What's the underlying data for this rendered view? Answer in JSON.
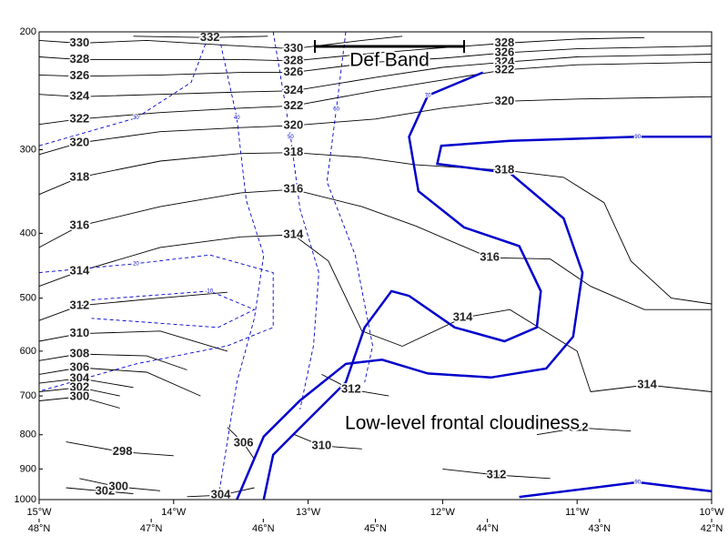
{
  "chart_data": {
    "type": "contour",
    "annotations": [
      "Def Band",
      "Low-level frontal cloudiness"
    ],
    "xlim": [
      -15,
      -10
    ],
    "xticks": [
      {
        "value": -15,
        "label": "15°W"
      },
      {
        "value": -14,
        "label": "14°W"
      },
      {
        "value": -13,
        "label": "13°W"
      },
      {
        "value": -12,
        "label": "12°W"
      },
      {
        "value": -11,
        "label": "11°W"
      },
      {
        "value": -10,
        "label": "10°W"
      }
    ],
    "x2lim": [
      48,
      42
    ],
    "x2ticks": [
      {
        "value": 48,
        "label": "48°N"
      },
      {
        "value": 47,
        "label": "47°N"
      },
      {
        "value": 46,
        "label": "46°N"
      },
      {
        "value": 45,
        "label": "45°N"
      },
      {
        "value": 44,
        "label": "44°N"
      },
      {
        "value": 43,
        "label": "43°N"
      },
      {
        "value": 42,
        "label": "42°N"
      }
    ],
    "ylim": [
      1000,
      200
    ],
    "ylog": true,
    "yticks": [
      200,
      300,
      400,
      500,
      600,
      700,
      800,
      900,
      1000
    ],
    "theta_color": "#000000",
    "rh_color": "#0000cc",
    "rh_solid_min": 70,
    "theta_contours": [
      {
        "level": 330,
        "lon": [
          -15,
          -14.7,
          -14.2,
          -13.5
        ],
        "p": [
          206,
          208,
          206,
          210
        ]
      },
      {
        "level": 330,
        "lon": [
          -13.5,
          -13.11,
          -12.6,
          -12.3
        ],
        "p": [
          210,
          212,
          206,
          203
        ]
      },
      {
        "level": 332,
        "lon": [
          -14.3,
          -13.73,
          -13.3
        ],
        "p": [
          203,
          204,
          203
        ]
      },
      {
        "level": 328,
        "lon": [
          -15,
          -14.7,
          -14.1,
          -13.5
        ],
        "p": [
          218,
          220,
          220,
          220
        ]
      },
      {
        "level": 328,
        "lon": [
          -13.5,
          -13.11,
          -12.6,
          -12.1
        ],
        "p": [
          220,
          221,
          216,
          212
        ]
      },
      {
        "level": 328,
        "lon": [
          -12.1,
          -11.54,
          -11,
          -10.5
        ],
        "p": [
          212,
          208,
          205,
          204
        ]
      },
      {
        "level": 326,
        "lon": [
          -15,
          -14.7,
          -14.1,
          -13.5
        ],
        "p": [
          232,
          233,
          232,
          230
        ]
      },
      {
        "level": 326,
        "lon": [
          -13.5,
          -13.11,
          -12.5,
          -12
        ],
        "p": [
          230,
          230,
          222,
          219
        ]
      },
      {
        "level": 326,
        "lon": [
          -12,
          -11.54,
          -11,
          -10
        ],
        "p": [
          219,
          215,
          212,
          210
        ]
      },
      {
        "level": 324,
        "lon": [
          -15,
          -14.7,
          -14.1,
          -13.5
        ],
        "p": [
          248,
          250,
          248,
          246
        ]
      },
      {
        "level": 324,
        "lon": [
          -13.5,
          -13.11,
          -12.5,
          -12
        ],
        "p": [
          246,
          245,
          234,
          226
        ]
      },
      {
        "level": 324,
        "lon": [
          -12,
          -11.54,
          -11,
          -10
        ],
        "p": [
          226,
          222,
          218,
          216
        ]
      },
      {
        "level": 322,
        "lon": [
          -15,
          -14.7,
          -14.1,
          -13.5
        ],
        "p": [
          275,
          270,
          264,
          260
        ]
      },
      {
        "level": 322,
        "lon": [
          -13.5,
          -13.11,
          -12.5,
          -12
        ],
        "p": [
          260,
          258,
          245,
          236
        ]
      },
      {
        "level": 322,
        "lon": [
          -12,
          -11.54,
          -11,
          -10
        ],
        "p": [
          236,
          228,
          224,
          222
        ]
      },
      {
        "level": 320,
        "lon": [
          -15,
          -14.7,
          -14.1,
          -13.5
        ],
        "p": [
          305,
          293,
          282,
          278
        ]
      },
      {
        "level": 320,
        "lon": [
          -13.5,
          -13.11,
          -12.5,
          -12
        ],
        "p": [
          278,
          276,
          270,
          260
        ]
      },
      {
        "level": 320,
        "lon": [
          -12,
          -11.54,
          -11,
          -10
        ],
        "p": [
          260,
          254,
          252,
          250
        ]
      },
      {
        "level": 318,
        "lon": [
          -15,
          -14.7,
          -14.1,
          -13.5
        ],
        "p": [
          350,
          330,
          312,
          304
        ]
      },
      {
        "level": 318,
        "lon": [
          -13.5,
          -13.11,
          -12.6,
          -12.2
        ],
        "p": [
          304,
          303,
          308,
          316
        ]
      },
      {
        "level": 318,
        "lon": [
          -12.2,
          -11.54,
          -11.1,
          -10.8,
          -10.6,
          -10.3,
          -10
        ],
        "p": [
          316,
          322,
          330,
          360,
          440,
          500,
          510
        ]
      },
      {
        "level": 316,
        "lon": [
          -15,
          -14.7,
          -14.1,
          -13.5
        ],
        "p": [
          420,
          390,
          365,
          348
        ]
      },
      {
        "level": 316,
        "lon": [
          -13.5,
          -13.11,
          -12.6,
          -12.2
        ],
        "p": [
          348,
          344,
          365,
          390
        ]
      },
      {
        "level": 316,
        "lon": [
          -12.2,
          -11.65,
          -11.2,
          -10.9,
          -10.5,
          -10
        ],
        "p": [
          390,
          435,
          437,
          480,
          520,
          520
        ]
      },
      {
        "level": 314,
        "lon": [
          -15,
          -14.7,
          -14.1,
          -13.5
        ],
        "p": [
          480,
          456,
          420,
          405
        ]
      },
      {
        "level": 314,
        "lon": [
          -13.5,
          -13.11,
          -12.85,
          -12.6,
          -12.3
        ],
        "p": [
          405,
          402,
          440,
          560,
          590
        ]
      },
      {
        "level": 314,
        "lon": [
          -12.3,
          -11.85,
          -11.5,
          -11,
          -10.9
        ],
        "p": [
          590,
          535,
          520,
          600,
          690
        ]
      },
      {
        "level": 314,
        "lon": [
          -10.9,
          -10.48,
          -10
        ],
        "p": [
          690,
          674,
          690
        ]
      },
      {
        "level": 312,
        "lon": [
          -15,
          -14.7,
          -14.1,
          -13.6
        ],
        "p": [
          540,
          513,
          500,
          490
        ]
      },
      {
        "level": 312,
        "lon": [
          -12.9,
          -12.68,
          -12.4
        ],
        "p": [
          650,
          685,
          700
        ]
      },
      {
        "level": 312,
        "lon": [
          -12,
          -11.6,
          -11.2
        ],
        "p": [
          900,
          919,
          930
        ]
      },
      {
        "level": 312,
        "lon": [
          -11.3,
          -10.99,
          -10.6
        ],
        "p": [
          800,
          781,
          790
        ]
      },
      {
        "level": 310,
        "lon": [
          -15,
          -14.7,
          -14.1,
          -13.6
        ],
        "p": [
          580,
          565,
          560,
          600
        ]
      },
      {
        "level": 310,
        "lon": [
          -13.1,
          -12.9,
          -12.6
        ],
        "p": [
          800,
          831,
          840
        ]
      },
      {
        "level": 308,
        "lon": [
          -15,
          -14.7,
          -14.2,
          -13.9
        ],
        "p": [
          620,
          606,
          610,
          640
        ]
      },
      {
        "level": 306,
        "lon": [
          -15,
          -14.7,
          -14.2,
          -13.8
        ],
        "p": [
          650,
          635,
          645,
          700
        ]
      },
      {
        "level": 306,
        "lon": [
          -13.6,
          -13.48,
          -13.4
        ],
        "p": [
          780,
          824,
          870
        ]
      },
      {
        "level": 304,
        "lon": [
          -15,
          -14.7,
          -14.3
        ],
        "p": [
          670,
          659,
          680
        ]
      },
      {
        "level": 304,
        "lon": [
          -13.9,
          -13.65,
          -13.4
        ],
        "p": [
          990,
          985,
          960
        ]
      },
      {
        "level": 302,
        "lon": [
          -15,
          -14.7,
          -14.4
        ],
        "p": [
          690,
          680,
          700
        ]
      },
      {
        "level": 302,
        "lon": [
          -14.8,
          -14.51,
          -14.3
        ],
        "p": [
          960,
          972,
          980
        ]
      },
      {
        "level": 300,
        "lon": [
          -15,
          -14.7,
          -14.4
        ],
        "p": [
          712,
          702,
          730
        ]
      },
      {
        "level": 300,
        "lon": [
          -14.7,
          -14.41,
          -14.1
        ],
        "p": [
          930,
          957,
          970
        ]
      },
      {
        "level": 298,
        "lon": [
          -14.8,
          -14.38,
          -14
        ],
        "p": [
          820,
          849,
          860
        ]
      }
    ],
    "rh_contours": [
      {
        "level": 70,
        "lon": [
          -11.7,
          -12.11,
          -12.25,
          -12.18,
          -11.84,
          -11.43,
          -11.27,
          -11.3,
          -11.54,
          -11.91,
          -12.25,
          -12.38,
          -12.58,
          -12.72,
          -13.06,
          -13.26,
          -13.33
        ],
        "p": [
          230,
          249,
          287,
          346,
          392,
          418,
          488,
          553,
          580,
          553,
          496,
          488,
          553,
          668,
          781,
          857,
          1000
        ]
      },
      {
        "level": 90,
        "lon": [
          -10,
          -10.55,
          -11.5,
          -12.01,
          -12.04,
          -11.5,
          -11.1,
          -10.96,
          -11.03,
          -11.23,
          -11.64,
          -12.11,
          -12.45,
          -12.72,
          -13.06,
          -13.33,
          -13.53
        ],
        "p": [
          287,
          287,
          291,
          296,
          315,
          325,
          380,
          458,
          571,
          637,
          657,
          648,
          618,
          627,
          711,
          805,
          1000
        ]
      },
      {
        "level": 90,
        "lon": [
          -11.43,
          -10.55,
          -10
        ],
        "p": [
          991,
          942,
          972
        ]
      },
      {
        "level": 60,
        "lon": [
          -12.72,
          -12.79,
          -12.86,
          -12.65,
          -12.52,
          -12.58
        ],
        "p": [
          200,
          261,
          335,
          431,
          589,
          668
        ]
      },
      {
        "level": 50,
        "lon": [
          -13.26,
          -13.13,
          -13.06,
          -12.92,
          -12.96,
          -13.06
        ],
        "p": [
          200,
          287,
          368,
          458,
          589,
          733
        ]
      },
      {
        "level": 40,
        "lon": [
          -13.67,
          -13.53,
          -13.46,
          -13.33,
          -13.4,
          -13.53,
          -13.67
        ],
        "p": [
          200,
          269,
          357,
          431,
          536,
          668,
          1000
        ]
      },
      {
        "level": 30,
        "lon": [
          -15,
          -14.28,
          -13.87,
          -13.73
        ],
        "p": [
          296,
          269,
          238,
          200
        ]
      },
      {
        "level": 20,
        "lon": [
          -15,
          -14.28,
          -13.73,
          -13.26,
          -13.26,
          -13.6,
          -14.28,
          -15
        ],
        "p": [
          458,
          444,
          431,
          458,
          553,
          589,
          627,
          689
        ]
      },
      {
        "level": 10,
        "lon": [
          -14.61,
          -13.73,
          -13.4,
          -13.67,
          -14.61
        ],
        "p": [
          503,
          488,
          520,
          553,
          536
        ]
      }
    ]
  }
}
